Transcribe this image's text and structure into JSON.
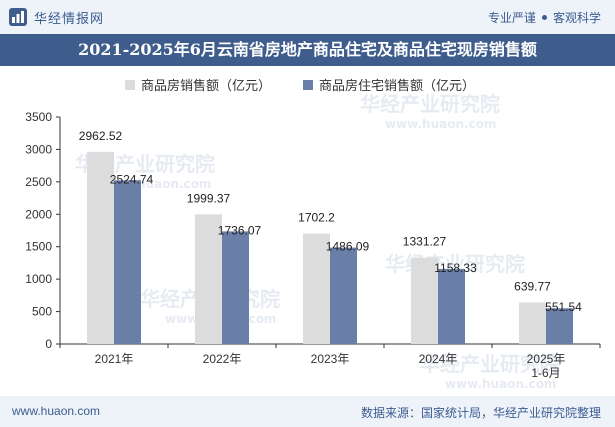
{
  "header": {
    "brand": "华经情报网",
    "slogan_left": "专业严谨",
    "slogan_right": "客观科学"
  },
  "title": "2021-2025年6月云南省房地产商品住宅及商品住宅现房销售额",
  "footer": {
    "website": "www.huaon.com",
    "source": "数据来源：国家统计局，华经产业研究院整理"
  },
  "watermark": {
    "cn": "华经产业研究院",
    "en": "www.huaon.com"
  },
  "colors": {
    "series1": "#dcdcdc",
    "series2": "#6a7fa8",
    "title_bg": "#3e5c8c",
    "bar_bg": "#eef3fa"
  },
  "chart_data": {
    "type": "bar",
    "title": "2021-2025年6月云南省房地产商品住宅及商品住宅现房销售额",
    "categories": [
      "2021年",
      "2022年",
      "2023年",
      "2024年",
      "2025年\n1-6月"
    ],
    "series": [
      {
        "name": "商品房销售额（亿元）",
        "values": [
          2962.52,
          1999.37,
          1702.2,
          1331.27,
          639.77
        ],
        "labels": [
          "2962.52",
          "1999.37",
          "1702.2",
          "1331.27",
          "639.77"
        ]
      },
      {
        "name": "商品房住宅销售额（亿元）",
        "values": [
          2524.74,
          1736.07,
          1486.09,
          1158.33,
          551.54
        ],
        "labels": [
          "2524.74",
          "1736.07",
          "1486.09",
          "1158.33",
          "551.54"
        ]
      }
    ],
    "yticks": [
      "0",
      "500",
      "1000",
      "1500",
      "2000",
      "2500",
      "3000",
      "3500"
    ],
    "ylim": [
      0,
      3500
    ],
    "xlabel": "",
    "ylabel": "",
    "legend": "top-center",
    "grid": false
  }
}
